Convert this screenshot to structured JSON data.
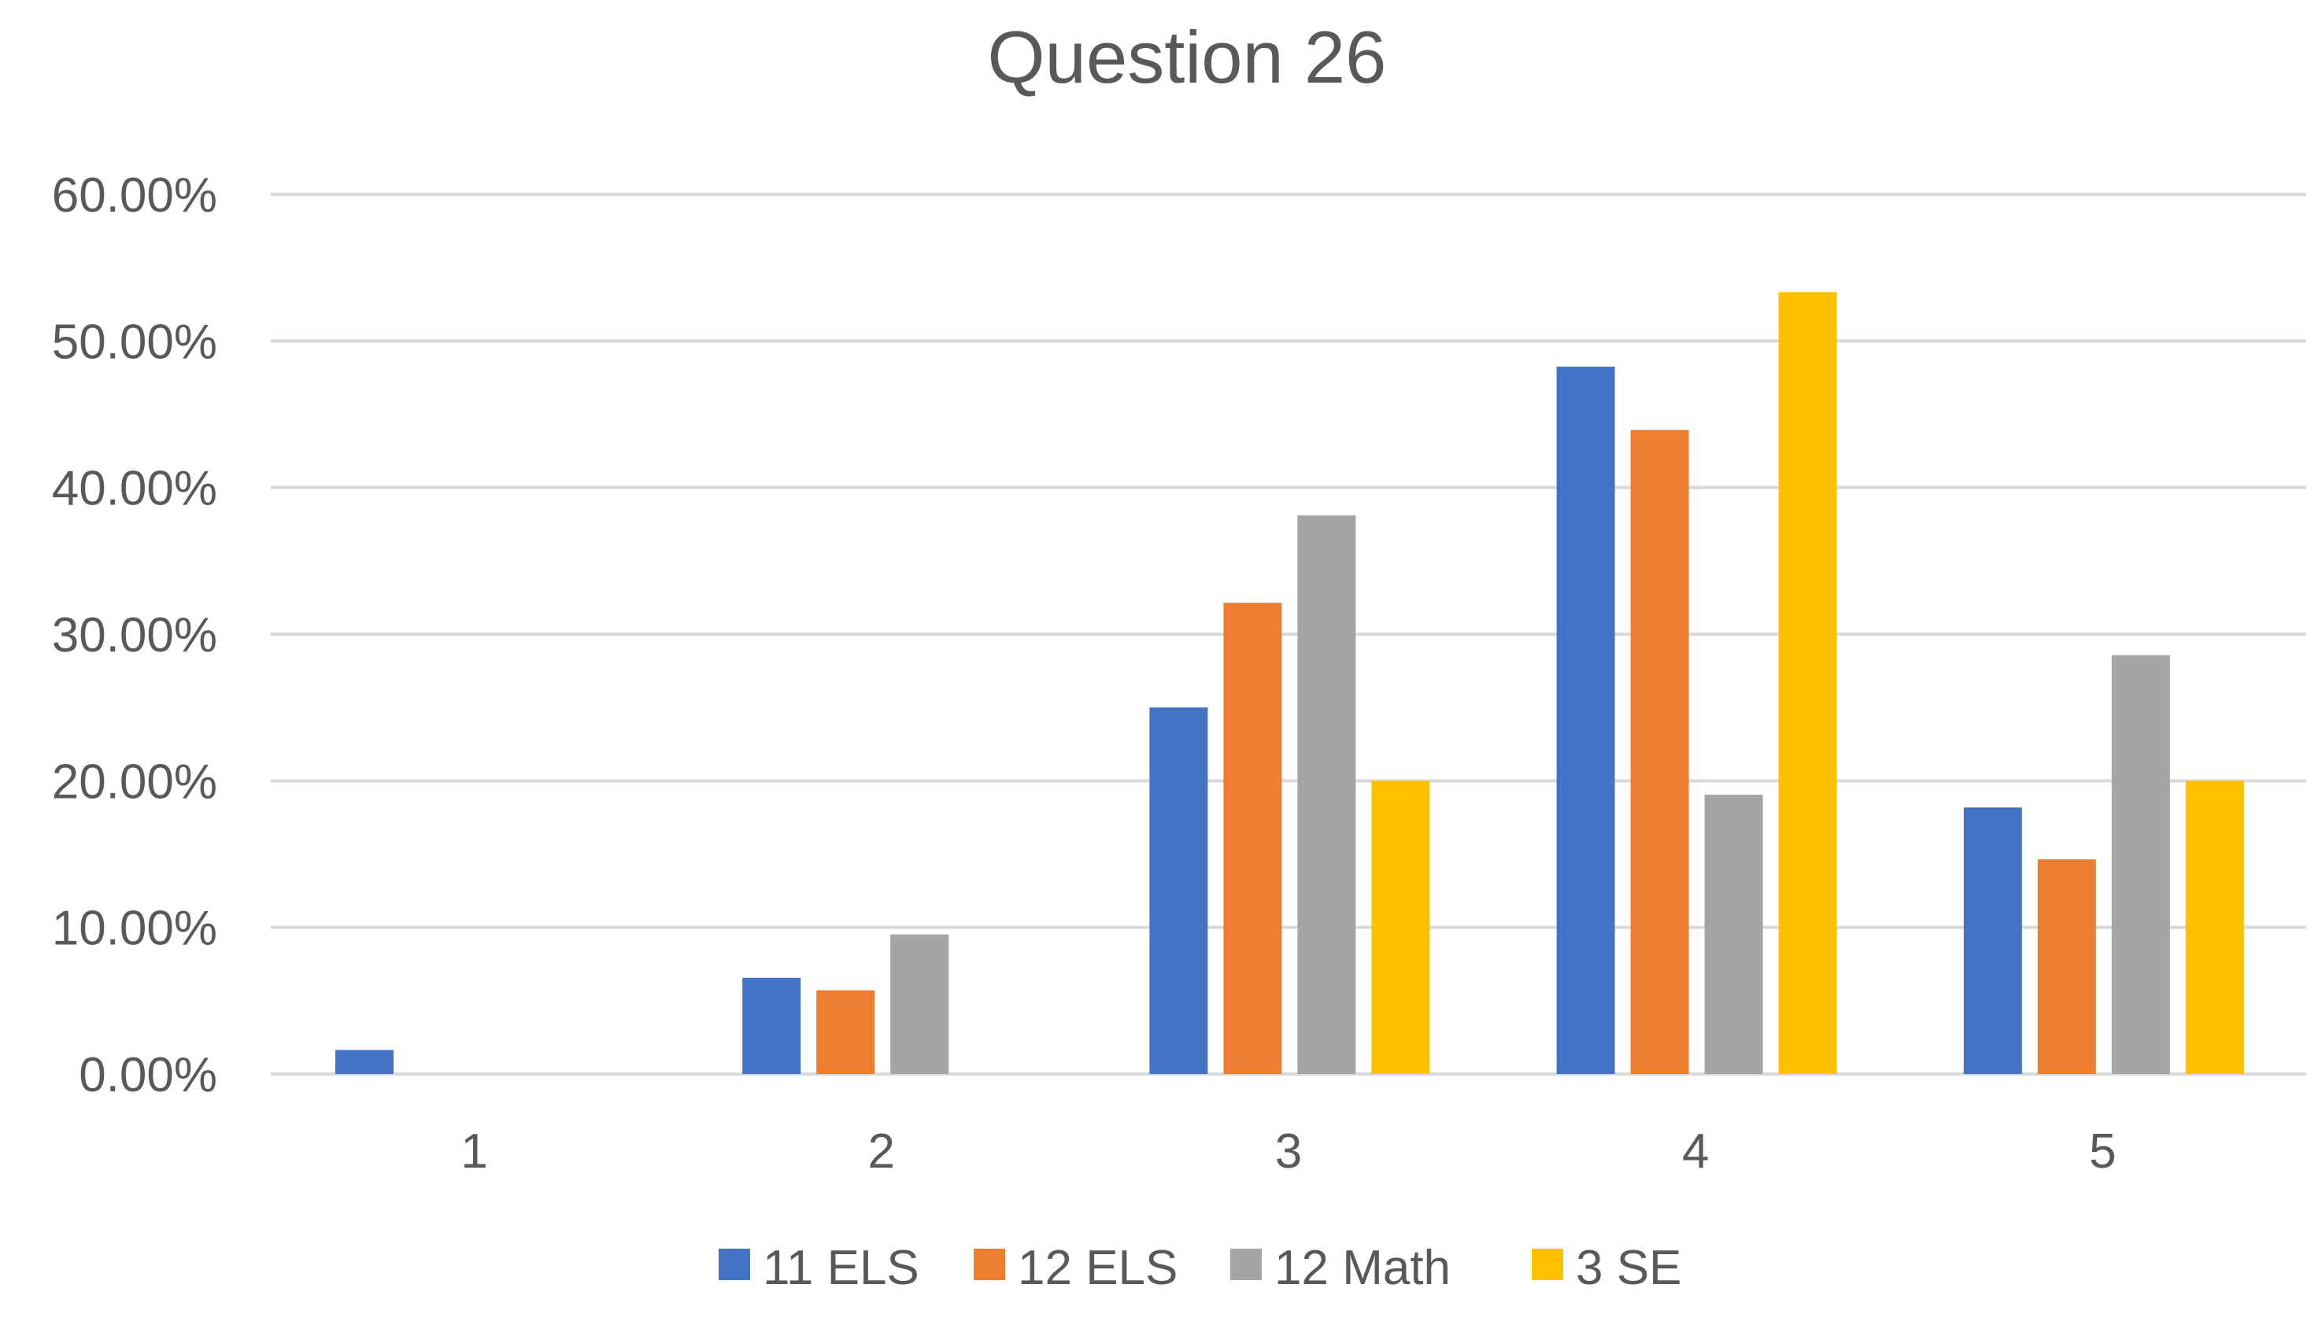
{
  "chart_data": {
    "type": "bar",
    "title": "Question 26",
    "categories": [
      "1",
      "2",
      "3",
      "4",
      "5"
    ],
    "series": [
      {
        "name": "11 ELS",
        "color": "#4472c4",
        "values": [
          0.0164,
          0.0656,
          0.25,
          0.4825,
          0.1818
        ]
      },
      {
        "name": "12 ELS",
        "color": "#ed7d31",
        "values": [
          0.0,
          0.0571,
          0.3214,
          0.4393,
          0.1464
        ]
      },
      {
        "name": "12 Math",
        "color": "#a5a5a5",
        "values": [
          0.0,
          0.0952,
          0.381,
          0.1905,
          0.2857
        ]
      },
      {
        "name": "3 SE",
        "color": "#ffc000",
        "values": [
          0.0,
          0.0,
          0.2,
          0.5333,
          0.2
        ]
      }
    ],
    "ylim": [
      0,
      0.6
    ],
    "yticks": [
      "0.00%",
      "10.00%",
      "20.00%",
      "30.00%",
      "40.00%",
      "50.00%",
      "60.00%"
    ],
    "grid": true,
    "legend_position": "bottom"
  }
}
